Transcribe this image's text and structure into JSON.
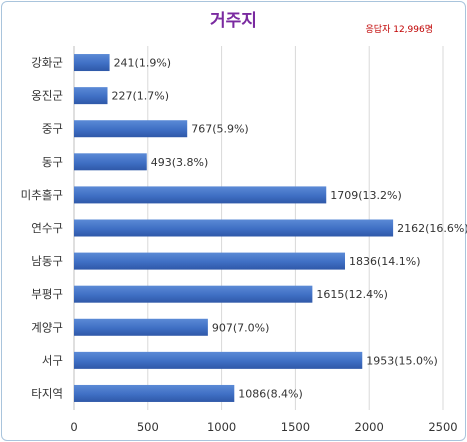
{
  "chart_data": {
    "type": "bar",
    "orientation": "horizontal",
    "title": "거주지",
    "subtitle": "응답자 12,996명",
    "categories": [
      "강화군",
      "옹진군",
      "중구",
      "동구",
      "미추홀구",
      "연수구",
      "남동구",
      "부평구",
      "계양구",
      "서구",
      "타지역"
    ],
    "values": [
      241,
      227,
      767,
      493,
      1709,
      2162,
      1836,
      1615,
      907,
      1953,
      1086
    ],
    "data_labels": [
      "241(1.9%)",
      "227(1.7%)",
      "767(5.9%)",
      "493(3.8%)",
      "1709(13.2%)",
      "2162(16.6%)",
      "1836(14.1%)",
      "1615(12.4%)",
      "907(7.0%)",
      "1953(15.0%)",
      "1086(8.4%)"
    ],
    "xlim": [
      0,
      2500
    ],
    "xticks": [
      0,
      500,
      1000,
      1500,
      2000,
      2500
    ],
    "grid": true,
    "bar_color": "#4472c4",
    "title_color": "#7a2aa0",
    "subtitle_color": "#c00000"
  }
}
